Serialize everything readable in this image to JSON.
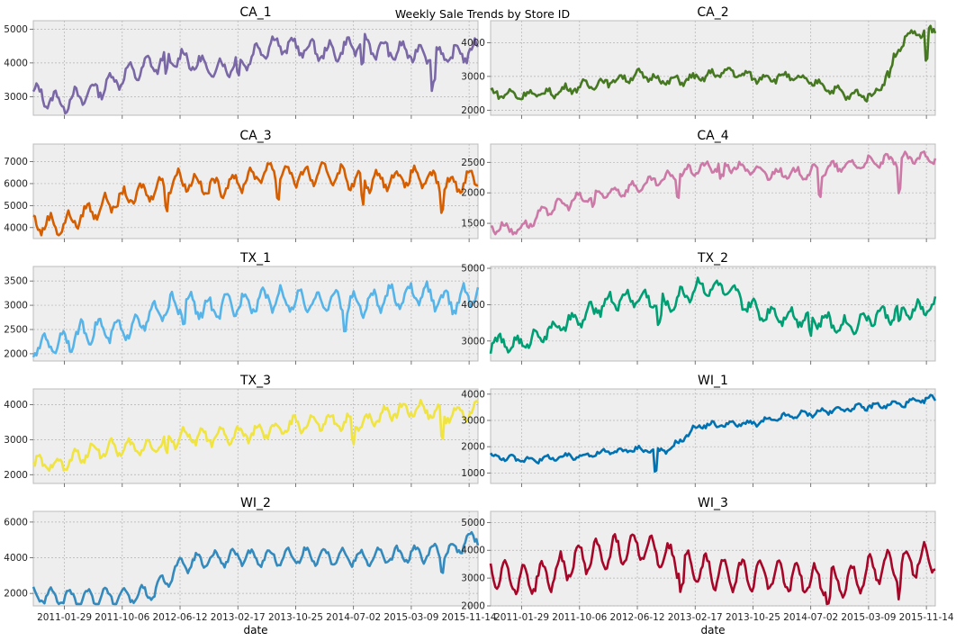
{
  "figure": {
    "title": "Weekly Sale Trends by Store ID"
  },
  "chart_data": {
    "type": "line",
    "title": "Weekly Sale Trends by Store ID",
    "xlabel": "date",
    "x_ticks": [
      "2011-01-29",
      "2011-10-06",
      "2012-06-12",
      "2013-02-17",
      "2013-10-25",
      "2014-07-02",
      "2015-03-09",
      "2015-11-14"
    ],
    "x_range": [
      "2011-01-29",
      "2016-05-22"
    ],
    "grid": true,
    "panels": [
      {
        "name": "CA_1",
        "color": "#7a68a6",
        "ylim": [
          2450,
          5250
        ],
        "yticks": [
          3000,
          4000,
          5000
        ],
        "series": {
          "trend": [
            3100,
            2800,
            3150,
            3600,
            3950,
            4150,
            3800,
            4000,
            4550,
            4450,
            4300,
            4550,
            4350,
            4300,
            4200,
            4400
          ],
          "amp": 260,
          "noise": 120,
          "spikes": [
            [
              0.3,
              -500
            ],
            [
              0.46,
              -500
            ],
            [
              0.74,
              -600
            ],
            [
              0.9,
              -800
            ]
          ]
        }
      },
      {
        "name": "CA_2",
        "color": "#467821",
        "ylim": [
          1850,
          4650
        ],
        "yticks": [
          2000,
          3000,
          4000
        ],
        "series": {
          "trend": [
            2500,
            2450,
            2500,
            2700,
            2850,
            3050,
            2850,
            2950,
            3150,
            2950,
            3000,
            2800,
            2450,
            2450,
            4200,
            4350
          ],
          "amp": 110,
          "noise": 90,
          "spikes": [
            [
              0.98,
              -900
            ],
            [
              0.9,
              -200
            ]
          ]
        }
      },
      {
        "name": "CA_3",
        "color": "#d55e00",
        "ylim": [
          3500,
          7800
        ],
        "yticks": [
          4000,
          5000,
          6000,
          7000
        ],
        "series": {
          "trend": [
            4200,
            4100,
            4800,
            5300,
            5700,
            6200,
            5800,
            6100,
            6600,
            6300,
            6500,
            6100,
            6200,
            6300,
            5900,
            6300
          ],
          "amp": 400,
          "noise": 180,
          "spikes": [
            [
              0.3,
              -700
            ],
            [
              0.55,
              -800
            ],
            [
              0.74,
              -1100
            ],
            [
              0.92,
              -900
            ]
          ]
        }
      },
      {
        "name": "CA_4",
        "color": "#cc79a7",
        "ylim": [
          1250,
          2800
        ],
        "yticks": [
          1500,
          2000,
          2500
        ],
        "series": {
          "trend": [
            1450,
            1400,
            1750,
            1900,
            2000,
            2100,
            2250,
            2400,
            2450,
            2350,
            2300,
            2350,
            2450,
            2500,
            2550,
            2600
          ],
          "amp": 80,
          "noise": 50,
          "spikes": [
            [
              0.42,
              -300
            ],
            [
              0.52,
              -250
            ],
            [
              0.74,
              -350
            ],
            [
              0.92,
              -450
            ],
            [
              0.23,
              -200
            ]
          ]
        }
      },
      {
        "name": "TX_1",
        "color": "#56b4e9",
        "ylim": [
          1850,
          3800
        ],
        "yticks": [
          2000,
          2500,
          3000,
          3500
        ],
        "series": {
          "trend": [
            2150,
            2250,
            2500,
            2450,
            2800,
            3050,
            2900,
            3050,
            3150,
            3050,
            3100,
            3000,
            3150,
            3250,
            3050,
            3250
          ],
          "amp": 220,
          "noise": 90,
          "spikes": [
            [
              0.34,
              -350
            ],
            [
              0.7,
              -400
            ]
          ]
        }
      },
      {
        "name": "TX_2",
        "color": "#009e73",
        "ylim": [
          2450,
          5050
        ],
        "yticks": [
          3000,
          4000,
          5000
        ],
        "series": {
          "trend": [
            2950,
            2900,
            3300,
            3600,
            4100,
            4200,
            4000,
            4500,
            4400,
            3800,
            3700,
            3600,
            3400,
            3700,
            3800,
            3950
          ],
          "amp": 200,
          "noise": 120,
          "spikes": [
            [
              0.38,
              -600
            ],
            [
              0.72,
              -500
            ],
            [
              0.92,
              -400
            ]
          ]
        }
      },
      {
        "name": "TX_3",
        "color": "#f0e442",
        "ylim": [
          1750,
          4450
        ],
        "yticks": [
          2000,
          3000,
          4000
        ],
        "series": {
          "trend": [
            2300,
            2300,
            2700,
            2750,
            2800,
            3100,
            3050,
            3150,
            3250,
            3450,
            3500,
            3450,
            3800,
            3900,
            3700,
            3850
          ],
          "amp": 200,
          "noise": 110,
          "spikes": [
            [
              0.3,
              -500
            ],
            [
              0.72,
              -500
            ],
            [
              0.92,
              -700
            ]
          ]
        }
      },
      {
        "name": "WI_1",
        "color": "#0072b2",
        "ylim": [
          600,
          4200
        ],
        "yticks": [
          1000,
          2000,
          3000,
          4000
        ],
        "series": {
          "trend": [
            1650,
            1500,
            1550,
            1650,
            1800,
            1900,
            1850,
            2800,
            2850,
            2900,
            3150,
            3300,
            3450,
            3550,
            3650,
            3850
          ],
          "amp": 90,
          "noise": 80,
          "spikes": [
            [
              0.37,
              -900
            ]
          ]
        }
      },
      {
        "name": "WI_2",
        "color": "#348abd",
        "ylim": [
          1300,
          6600
        ],
        "yticks": [
          2000,
          4000,
          6000
        ],
        "series": {
          "trend": [
            1900,
            1750,
            1800,
            1850,
            2000,
            3600,
            3900,
            4050,
            4000,
            4100,
            4100,
            4000,
            4100,
            4200,
            4350,
            5200
          ],
          "amp": 420,
          "noise": 150,
          "spikes": [
            [
              0.92,
              -700
            ]
          ]
        }
      },
      {
        "name": "WI_3",
        "color": "#a60628",
        "ylim": [
          2000,
          5400
        ],
        "yticks": [
          2000,
          3000,
          4000,
          5000
        ],
        "series": {
          "trend": [
            3300,
            2900,
            3100,
            3700,
            3900,
            4200,
            3700,
            3300,
            3150,
            3150,
            3050,
            2900,
            2850,
            3300,
            3550,
            3800
          ],
          "amp": 520,
          "noise": 140,
          "spikes": [
            [
              0.43,
              -700
            ],
            [
              0.76,
              -700
            ],
            [
              0.92,
              -700
            ]
          ]
        }
      }
    ]
  }
}
